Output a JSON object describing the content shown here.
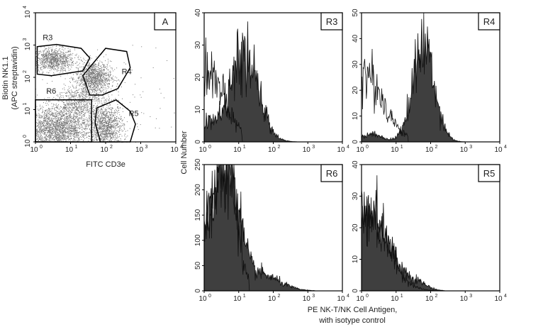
{
  "chart_data": [
    {
      "type": "scatter",
      "panel_label": "A",
      "xlabel": "FITC CD3e",
      "ylabel_lines": [
        "Biotin NK1.1",
        "(APC streptavidin)"
      ],
      "scale": "log",
      "xlim": [
        1,
        10000
      ],
      "ylim": [
        1,
        10000
      ],
      "tick_labels": [
        "10",
        "10",
        "10",
        "10",
        "10"
      ],
      "tick_exponents": [
        "0",
        "1",
        "2",
        "3",
        "4"
      ],
      "point_color": "#777777",
      "clusters": [
        {
          "name": "R3",
          "center_log": [
            0.5,
            2.55
          ],
          "sd_log": [
            0.3,
            0.18
          ],
          "n": 900
        },
        {
          "name": "R4",
          "center_log": [
            1.65,
            2.0
          ],
          "sd_log": [
            0.25,
            0.25
          ],
          "n": 1100
        },
        {
          "name": "R6",
          "center_log": [
            0.6,
            0.4
          ],
          "sd_log": [
            0.45,
            0.35
          ],
          "n": 2200
        },
        {
          "name": "R5",
          "center_log": [
            2.0,
            0.45
          ],
          "sd_log": [
            0.25,
            0.35
          ],
          "n": 1200
        },
        {
          "name": "bridge",
          "center_log": [
            1.2,
            1.2
          ],
          "sd_log": [
            0.35,
            0.3
          ],
          "n": 700
        },
        {
          "name": "sparse",
          "center_log": [
            2.6,
            1.5
          ],
          "sd_log": [
            0.7,
            0.8
          ],
          "n": 60
        }
      ],
      "gates": [
        {
          "name": "R3",
          "label_pos_log": [
            0.35,
            3.15
          ],
          "polygon_log": [
            [
              0.05,
              2.95
            ],
            [
              0.6,
              3.02
            ],
            [
              1.3,
              2.9
            ],
            [
              1.55,
              2.6
            ],
            [
              1.35,
              2.2
            ],
            [
              0.45,
              2.05
            ],
            [
              0.05,
              2.1
            ]
          ]
        },
        {
          "name": "R4",
          "label_pos_log": [
            2.6,
            2.1
          ],
          "polygon_log": [
            [
              1.35,
              2.05
            ],
            [
              2.0,
              2.9
            ],
            [
              2.6,
              2.8
            ],
            [
              2.7,
              2.3
            ],
            [
              2.35,
              1.65
            ],
            [
              1.9,
              1.45
            ],
            [
              1.55,
              1.45
            ]
          ]
        },
        {
          "name": "R6",
          "label_pos_log": [
            0.45,
            1.5
          ],
          "polygon_log": [
            [
              0,
              1.3
            ],
            [
              1.6,
              1.3
            ],
            [
              1.6,
              0
            ],
            [
              0,
              0
            ]
          ]
        },
        {
          "name": "R5",
          "label_pos_log": [
            2.8,
            0.8
          ],
          "polygon_log": [
            [
              1.75,
              1.05
            ],
            [
              2.3,
              1.3
            ],
            [
              2.7,
              0.95
            ],
            [
              2.85,
              0.55
            ],
            [
              2.7,
              0
            ],
            [
              1.85,
              0
            ],
            [
              1.7,
              0.6
            ]
          ]
        }
      ]
    },
    {
      "type": "area",
      "panel_label": "R3",
      "ylim": [
        0,
        40
      ],
      "yticks": [
        "0",
        "10",
        "20",
        "30",
        "40"
      ],
      "xlim": [
        1,
        10000
      ],
      "filled": {
        "components": [
          {
            "peak_log": 1.15,
            "sd": 0.42,
            "max": 26
          },
          {
            "peak_log": 0.1,
            "sd": 0.25,
            "max": 5
          }
        ],
        "end_log": 2.95
      },
      "isotype": {
        "components": [
          {
            "peak_log": 0.0,
            "sd": 0.55,
            "max": 23
          }
        ],
        "end_log": 1.1
      }
    },
    {
      "type": "area",
      "panel_label": "R4",
      "ylim": [
        0,
        50
      ],
      "yticks": [
        "0",
        "10",
        "20",
        "30",
        "40",
        "50"
      ],
      "xlim": [
        1,
        10000
      ],
      "filled": {
        "components": [
          {
            "peak_log": 1.8,
            "sd": 0.32,
            "max": 37
          },
          {
            "peak_log": 0.3,
            "sd": 0.3,
            "max": 3
          }
        ],
        "end_log": 3.0
      },
      "isotype": {
        "components": [
          {
            "peak_log": 0.0,
            "sd": 0.6,
            "max": 27
          }
        ],
        "end_log": 1.35
      }
    },
    {
      "type": "area",
      "panel_label": "R6",
      "ylim": [
        0,
        250
      ],
      "yticks": [
        "0",
        "50",
        "100",
        "150",
        "200",
        "250"
      ],
      "xlim": [
        1,
        10000
      ],
      "filled": {
        "components": [
          {
            "peak_log": 0.7,
            "sd": 0.3,
            "max": 190
          },
          {
            "peak_log": 0.2,
            "sd": 0.5,
            "max": 110
          },
          {
            "peak_log": 1.6,
            "sd": 0.55,
            "max": 32
          }
        ],
        "end_log": 3.2
      },
      "isotype": {
        "components": [
          {
            "peak_log": 0.7,
            "sd": 0.28,
            "max": 200
          },
          {
            "peak_log": 0.1,
            "sd": 0.4,
            "max": 120
          }
        ],
        "end_log": 1.3
      }
    },
    {
      "type": "area",
      "panel_label": "R5",
      "ylim": [
        0,
        40
      ],
      "yticks": [
        "0",
        "10",
        "20",
        "30",
        "40"
      ],
      "xlim": [
        1,
        10000
      ],
      "filled": {
        "components": [
          {
            "peak_log": 0.2,
            "sd": 0.6,
            "max": 24
          },
          {
            "peak_log": 1.6,
            "sd": 0.3,
            "max": 2
          }
        ],
        "end_log": 2.4
      },
      "isotype": {
        "components": [
          {
            "peak_log": 0.1,
            "sd": 0.6,
            "max": 27
          }
        ],
        "end_log": 2.2
      }
    }
  ],
  "shared": {
    "ylabel": "Cell Number",
    "xlabel_lines": [
      "PE NK-T/NK Cell Antigen,",
      "with isotype control"
    ],
    "fill_color": "#3f3f3f",
    "line_color": "#111111"
  }
}
